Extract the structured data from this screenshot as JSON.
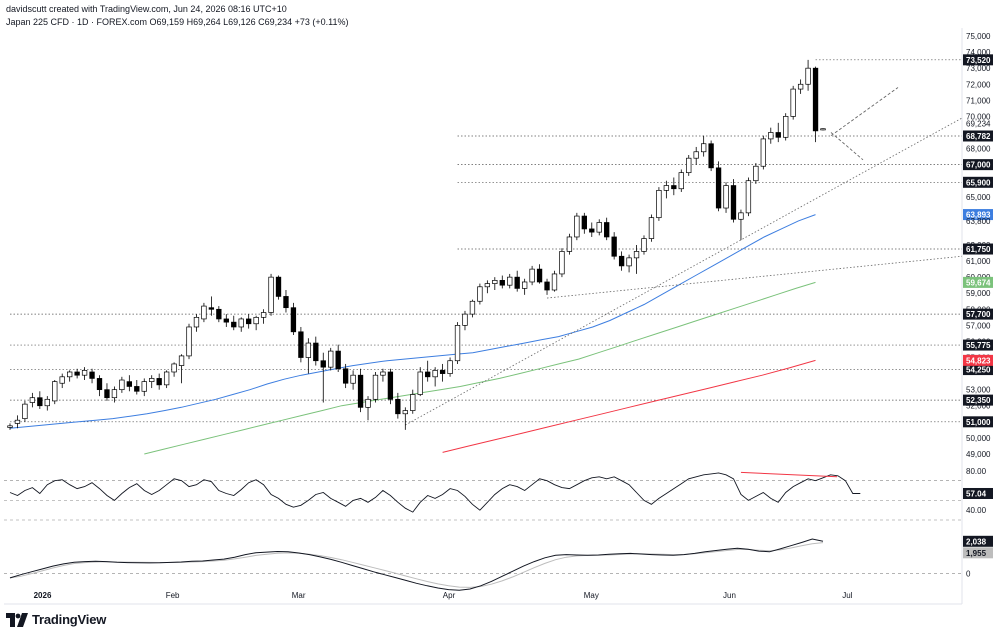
{
  "header": {
    "created_line": "davidscutt created with TradingView.com, Jun 24, 2026 08:16 UTC+10",
    "symbol_line": "Japan 225 CFD · 1D · FOREX.com  O69,159 H69,264 L69,126 C69,234 +73 (+0.11%)"
  },
  "brand": {
    "name": "TradingView",
    "logo_icon": "tradingview-logo-icon"
  },
  "colors": {
    "up_candle": "#ffffff",
    "down_candle": "#000000",
    "sma_short": "#3d7ee0",
    "sma_mid": "#7bc27b",
    "sma_long": "#f23645",
    "level_line": "#555555",
    "trend_line": "#666666",
    "rsi_line": "#131722",
    "macd_line": "#131722",
    "signal_line": "#bdbdbd",
    "divergence_line": "#f23645"
  },
  "chart_data": [
    {
      "type": "candlestick",
      "title": "Japan 225 CFD · 1D · FOREX.com",
      "x_tick_labels": [
        "2026",
        "Feb",
        "Mar",
        "Apr",
        "May",
        "Jun",
        "Jul"
      ],
      "y_tick_labels": [
        "75,000",
        "74,000",
        "73,000",
        "72,000",
        "71,000",
        "70,000",
        "68,000",
        "67,000",
        "65,000",
        "64,000",
        "62,000",
        "61,000",
        "60,000",
        "59,000",
        "58,000",
        "57,000",
        "56,000",
        "55,000",
        "53,000",
        "52,000",
        "50,000",
        "49,000"
      ],
      "ylim": [
        48500,
        75500
      ],
      "candles_ohlc": [
        [
          50650,
          50900,
          50500,
          50750
        ],
        [
          50900,
          51400,
          50600,
          51100
        ],
        [
          51200,
          52300,
          51000,
          52100
        ],
        [
          52200,
          52800,
          51900,
          52500
        ],
        [
          52500,
          52900,
          51800,
          52000
        ],
        [
          52000,
          52600,
          51700,
          52400
        ],
        [
          52300,
          53600,
          52100,
          53500
        ],
        [
          53400,
          54000,
          53100,
          53800
        ],
        [
          53800,
          54200,
          53500,
          54100
        ],
        [
          54100,
          54300,
          53700,
          53900
        ],
        [
          53900,
          54400,
          53600,
          54200
        ],
        [
          54100,
          54300,
          53400,
          53700
        ],
        [
          53700,
          53900,
          52600,
          53000
        ],
        [
          53000,
          53400,
          52300,
          52500
        ],
        [
          52500,
          53200,
          52200,
          53000
        ],
        [
          53000,
          53800,
          52800,
          53600
        ],
        [
          53500,
          53900,
          52900,
          53200
        ],
        [
          53200,
          53600,
          52700,
          52900
        ],
        [
          52900,
          53700,
          52600,
          53500
        ],
        [
          53500,
          53900,
          53100,
          53700
        ],
        [
          53700,
          54000,
          53000,
          53300
        ],
        [
          53300,
          54200,
          53100,
          54100
        ],
        [
          54100,
          54700,
          53800,
          54600
        ],
        [
          54500,
          55200,
          53400,
          55100
        ],
        [
          55100,
          57100,
          54900,
          56900
        ],
        [
          56900,
          57700,
          56600,
          57500
        ],
        [
          57400,
          58400,
          57200,
          58200
        ],
        [
          58100,
          58800,
          57600,
          58000
        ],
        [
          58000,
          58200,
          57200,
          57400
        ],
        [
          57400,
          57700,
          56900,
          57200
        ],
        [
          57200,
          57600,
          56700,
          56900
        ],
        [
          56900,
          57500,
          56600,
          57400
        ],
        [
          57400,
          57700,
          56800,
          57100
        ],
        [
          57100,
          57600,
          56700,
          57500
        ],
        [
          57500,
          58000,
          57100,
          57800
        ],
        [
          57800,
          60200,
          57600,
          60000
        ],
        [
          60000,
          60100,
          58600,
          58800
        ],
        [
          58800,
          59200,
          57800,
          58100
        ],
        [
          58100,
          58400,
          56400,
          56600
        ],
        [
          56600,
          56900,
          54700,
          55000
        ],
        [
          55000,
          56200,
          54000,
          55900
        ],
        [
          55900,
          56300,
          54500,
          54800
        ],
        [
          54800,
          55300,
          52200,
          54400
        ],
        [
          54400,
          55600,
          54200,
          55400
        ],
        [
          55400,
          55800,
          54100,
          54300
        ],
        [
          54300,
          54600,
          53100,
          53400
        ],
        [
          53400,
          54200,
          53000,
          53900
        ],
        [
          53900,
          54300,
          51600,
          51900
        ],
        [
          51900,
          52600,
          51100,
          52400
        ],
        [
          52400,
          54100,
          52200,
          53900
        ],
        [
          53900,
          54300,
          53500,
          54100
        ],
        [
          54100,
          54300,
          52100,
          52400
        ],
        [
          52400,
          52800,
          51200,
          51500
        ],
        [
          51500,
          51900,
          50500,
          51700
        ],
        [
          51700,
          53000,
          51500,
          52700
        ],
        [
          52700,
          54400,
          52600,
          54100
        ],
        [
          54100,
          54800,
          53500,
          53800
        ],
        [
          53800,
          54400,
          53200,
          54200
        ],
        [
          54200,
          54600,
          53500,
          54000
        ],
        [
          54000,
          55000,
          53800,
          54800
        ],
        [
          54800,
          57200,
          54600,
          57000
        ],
        [
          57000,
          57900,
          56700,
          57700
        ],
        [
          57700,
          58600,
          57500,
          58500
        ],
        [
          58500,
          59600,
          58300,
          59400
        ],
        [
          59400,
          59800,
          59000,
          59600
        ],
        [
          59600,
          60000,
          59200,
          59800
        ],
        [
          59800,
          60100,
          59300,
          59500
        ],
        [
          59500,
          60200,
          59300,
          60000
        ],
        [
          60000,
          60400,
          59100,
          59300
        ],
        [
          59300,
          59900,
          58900,
          59700
        ],
        [
          59700,
          60700,
          59500,
          60500
        ],
        [
          60500,
          60800,
          59600,
          59700
        ],
        [
          59700,
          59900,
          58900,
          59200
        ],
        [
          59200,
          60400,
          59100,
          60200
        ],
        [
          60200,
          61800,
          60000,
          61600
        ],
        [
          61600,
          62700,
          61400,
          62500
        ],
        [
          62500,
          64000,
          62300,
          63800
        ],
        [
          63800,
          64000,
          62700,
          63000
        ],
        [
          63000,
          63400,
          62500,
          62800
        ],
        [
          62800,
          63600,
          62600,
          63400
        ],
        [
          63400,
          63700,
          62300,
          62500
        ],
        [
          62500,
          62800,
          61100,
          61300
        ],
        [
          61300,
          61600,
          60400,
          60700
        ],
        [
          60700,
          61400,
          60300,
          61200
        ],
        [
          61200,
          62000,
          60200,
          61600
        ],
        [
          61600,
          62600,
          61400,
          62400
        ],
        [
          62400,
          63900,
          62200,
          63700
        ],
        [
          63700,
          65600,
          63500,
          65400
        ],
        [
          65400,
          66000,
          64900,
          65700
        ],
        [
          65700,
          66200,
          65100,
          65500
        ],
        [
          65500,
          66700,
          65300,
          66500
        ],
        [
          66500,
          67600,
          66300,
          67400
        ],
        [
          67400,
          68100,
          67000,
          67800
        ],
        [
          67800,
          68800,
          67500,
          68300
        ],
        [
          68300,
          68500,
          66600,
          66800
        ],
        [
          66800,
          67200,
          64100,
          64300
        ],
        [
          64300,
          65900,
          64000,
          65700
        ],
        [
          65700,
          66100,
          63400,
          63600
        ],
        [
          63600,
          64200,
          62300,
          64000
        ],
        [
          64000,
          66200,
          63800,
          66000
        ],
        [
          66000,
          67100,
          65800,
          66900
        ],
        [
          66900,
          68800,
          66700,
          68600
        ],
        [
          68600,
          69300,
          68300,
          69000
        ],
        [
          69000,
          69600,
          68400,
          68700
        ],
        [
          68700,
          70200,
          68500,
          70000
        ],
        [
          70000,
          71900,
          69800,
          71700
        ],
        [
          71700,
          72300,
          71400,
          72000
        ],
        [
          72000,
          73520,
          71600,
          73000
        ],
        [
          73000,
          73100,
          68400,
          69100
        ],
        [
          69159,
          69264,
          69126,
          69234
        ]
      ],
      "series": [
        {
          "name": "SMA 50",
          "values": [
            50600,
            50700,
            50800,
            50900,
            51000,
            51100,
            51200,
            51350,
            51500,
            51700,
            51900,
            52150,
            52400,
            52700,
            53000,
            53350,
            53650,
            53900,
            54100,
            54300,
            54500,
            54650,
            54800,
            54900,
            55000,
            55100,
            55200,
            55300,
            55500,
            55700,
            55900,
            56100,
            56300,
            56600,
            56900,
            57300,
            57800,
            58300,
            58900,
            59500,
            60100,
            60700,
            61300,
            61900,
            62500,
            63000,
            63500,
            63893
          ]
        },
        {
          "name": "SMA 100",
          "values": [
            49000,
            49300,
            49600,
            49900,
            50200,
            50500,
            50800,
            51100,
            51400,
            51700,
            52000,
            52200,
            52400,
            52600,
            52800,
            53000,
            53200,
            53450,
            53700,
            54000,
            54300,
            54600,
            54900,
            55300,
            55700,
            56100,
            56500,
            56900,
            57300,
            57700,
            58100,
            58500,
            58900,
            59300,
            59674
          ]
        },
        {
          "name": "SMA 200",
          "values": [
            49100,
            49500,
            49900,
            50300,
            50700,
            51100,
            51500,
            51900,
            52300,
            52700,
            53100,
            53500,
            53900,
            54350,
            54823
          ]
        },
        {
          "name": "horizontal levels",
          "values": [
            73520,
            68782,
            67000,
            65900,
            61750,
            57700,
            55775,
            54250,
            52350,
            51000
          ]
        }
      ],
      "price_labels": {
        "high": "73,520",
        "last_pair": [
          "69,234",
          "68,782"
        ],
        "levels": [
          "67,000",
          "65,900",
          "61,750",
          "57,700",
          "55,775",
          "54,250",
          "52,350",
          "51,000"
        ],
        "sma_short": "63,893",
        "sma_short_pair": "63,800",
        "sma_mid": "59,674",
        "sma_long": "54,823"
      }
    },
    {
      "type": "line",
      "y_tick_labels": [
        "80.00",
        "40.00"
      ],
      "ylim": [
        30,
        85
      ],
      "current_label": "57.04",
      "series": [
        {
          "name": "",
          "values": [
            58,
            55,
            60,
            63,
            57,
            66,
            70,
            71,
            66,
            62,
            64,
            68,
            62,
            55,
            50,
            57,
            63,
            67,
            60,
            56,
            60,
            66,
            72,
            70,
            64,
            66,
            71,
            69,
            60,
            57,
            55,
            61,
            68,
            71,
            66,
            56,
            52,
            46,
            43,
            45,
            50,
            56,
            58,
            52,
            48,
            44,
            50,
            52,
            48,
            53,
            60,
            55,
            48,
            42,
            38,
            48,
            55,
            52,
            56,
            62,
            60,
            54,
            46,
            40,
            48,
            56,
            62,
            66,
            64,
            60,
            66,
            72,
            70,
            66,
            63,
            62,
            66,
            70,
            73,
            74,
            72,
            74,
            70,
            66,
            58,
            50,
            46,
            52,
            57,
            62,
            67,
            72,
            74,
            76,
            77,
            78,
            76,
            72,
            56,
            50,
            54,
            58,
            52,
            48,
            58,
            64,
            68,
            72,
            70,
            73,
            76,
            75,
            70,
            57,
            57
          ]
        }
      ]
    },
    {
      "type": "line",
      "y_tick_labels": [
        "0"
      ],
      "ylim": [
        -1400,
        3000
      ],
      "current_labels": [
        "2,038",
        "1,955"
      ],
      "series": [
        {
          "name": "",
          "values": [
            -260,
            -60,
            120,
            300,
            480,
            620,
            720,
            760,
            780,
            760,
            720,
            700,
            690,
            680,
            690,
            710,
            740,
            780,
            800,
            860,
            920,
            1040,
            1200,
            1320,
            1360,
            1400,
            1380,
            1300,
            1200,
            1060,
            900,
            720,
            520,
            320,
            120,
            -60,
            -240,
            -420,
            -600,
            -760,
            -900,
            -1000,
            -1040,
            -960,
            -760,
            -480,
            -160,
            160,
            480,
            760,
            1000,
            1160,
            1200,
            1180,
            1160,
            1180,
            1220,
            1260,
            1280,
            1240,
            1200,
            1180,
            1160,
            1200,
            1280,
            1380,
            1460,
            1540,
            1600,
            1540,
            1420,
            1380,
            1560,
            1760,
            1960,
            2180,
            2038
          ]
        },
        {
          "name": "",
          "values": [
            -260,
            -160,
            0,
            180,
            360,
            520,
            640,
            700,
            740,
            750,
            740,
            730,
            720,
            710,
            705,
            705,
            715,
            735,
            760,
            800,
            850,
            930,
            1040,
            1150,
            1230,
            1290,
            1310,
            1290,
            1230,
            1140,
            1020,
            880,
            720,
            550,
            380,
            210,
            40,
            -140,
            -320,
            -490,
            -640,
            -760,
            -840,
            -860,
            -800,
            -660,
            -450,
            -200,
            90,
            380,
            650,
            880,
            1040,
            1120,
            1150,
            1160,
            1180,
            1210,
            1240,
            1250,
            1240,
            1220,
            1200,
            1210,
            1250,
            1320,
            1390,
            1460,
            1520,
            1530,
            1480,
            1440,
            1500,
            1620,
            1760,
            1890,
            1955
          ]
        }
      ]
    }
  ]
}
